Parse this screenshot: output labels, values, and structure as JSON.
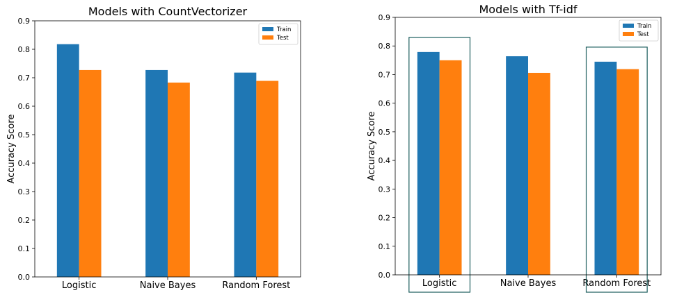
{
  "chart_data": [
    {
      "type": "bar",
      "title": "Models with CountVectorizer",
      "xlabel": "",
      "ylabel": "Accuracy Score",
      "categories": [
        "Logistic",
        "Naive Bayes",
        "Random Forest"
      ],
      "series": [
        {
          "name": "Train",
          "values": [
            0.818,
            0.727,
            0.718
          ]
        },
        {
          "name": "Test",
          "values": [
            0.727,
            0.683,
            0.689
          ]
        }
      ],
      "ylim": [
        0.0,
        0.9
      ],
      "yticks": [
        "0.0",
        "0.1",
        "0.2",
        "0.3",
        "0.4",
        "0.5",
        "0.6",
        "0.7",
        "0.8",
        "0.9"
      ],
      "legend": "top-right",
      "grid": false,
      "highlighted_categories": []
    },
    {
      "type": "bar",
      "title": "Models with Tf-idf",
      "xlabel": "",
      "ylabel": "Accuracy Score",
      "categories": [
        "Logistic",
        "Naive Bayes",
        "Random Forest"
      ],
      "series": [
        {
          "name": "Train",
          "values": [
            0.779,
            0.764,
            0.745
          ]
        },
        {
          "name": "Test",
          "values": [
            0.75,
            0.706,
            0.719
          ]
        }
      ],
      "ylim": [
        0.0,
        0.9
      ],
      "yticks": [
        "0.0",
        "0.1",
        "0.2",
        "0.3",
        "0.4",
        "0.5",
        "0.6",
        "0.7",
        "0.8",
        "0.9"
      ],
      "legend": "top-right",
      "grid": false,
      "highlighted_categories": [
        "Logistic",
        "Random Forest"
      ]
    }
  ],
  "colors": {
    "train": "#1f77b4",
    "test": "#ff7f0e",
    "highlight_box": "#1a5c5c",
    "axis": "#000000"
  }
}
